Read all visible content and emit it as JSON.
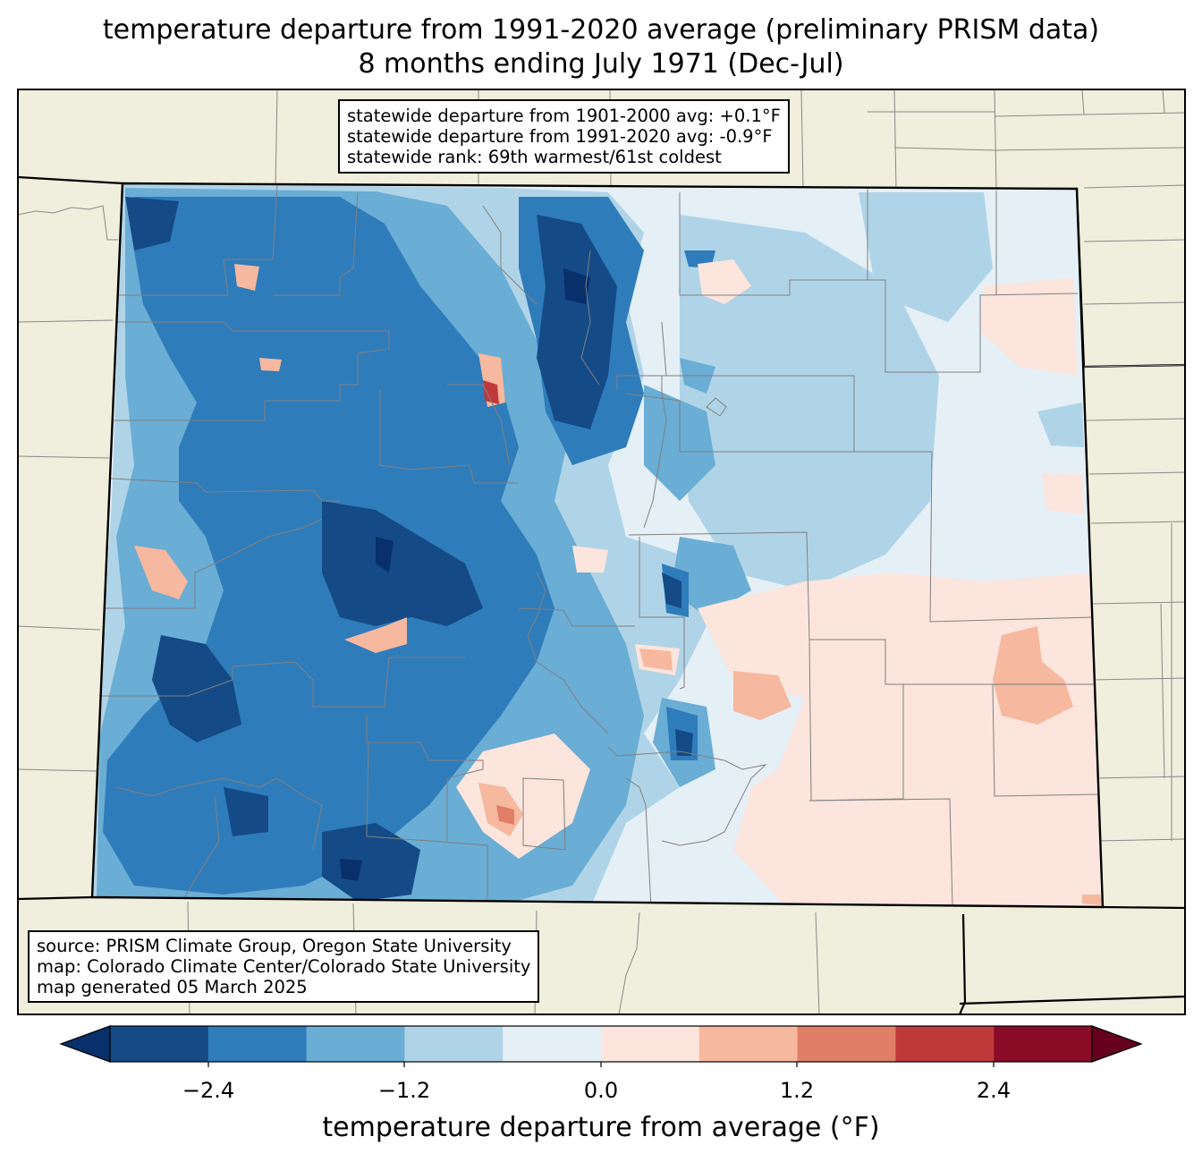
{
  "title": {
    "line1": "temperature departure from 1991-2020 average (preliminary PRISM data)",
    "line2": "8 months ending July 1971 (Dec-Jul)"
  },
  "stats": {
    "line1": "statewide departure from 1901-2000 avg: +0.1°F",
    "line2": "statewide departure from 1991-2020 avg: -0.9°F",
    "line3": "statewide rank: 69th warmest/61st coldest"
  },
  "source": {
    "line1": "source: PRISM Climate Group, Oregon State University",
    "line2": "map: Colorado Climate Center/Colorado State University",
    "line3": "map generated 05 March 2025"
  },
  "colorbar": {
    "label": "temperature departure from average (°F)",
    "ticks": [
      "−2.4",
      "−1.2",
      "0.0",
      "1.2",
      "2.4"
    ],
    "bins": [
      "#08306b",
      "#144a86",
      "#2f7cbb",
      "#6aadd5",
      "#b0d4e7",
      "#e5eff6",
      "#fbe5dc",
      "#f6b89e",
      "#e07e68",
      "#c0393a",
      "#8a0b25",
      "#67001f"
    ]
  },
  "colors": {
    "land": "#f0eedc",
    "state_border": "#000000",
    "county_border": "#808080"
  }
}
